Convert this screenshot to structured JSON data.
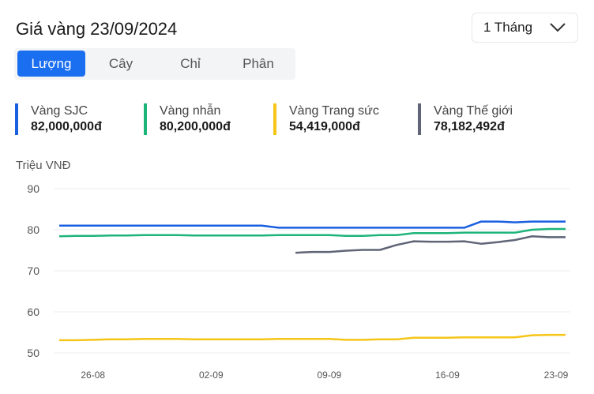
{
  "header": {
    "title": "Giá vàng 23/09/2024",
    "period": "1 Tháng"
  },
  "tabs": [
    {
      "label": "Lượng",
      "active": true
    },
    {
      "label": "Cây"
    },
    {
      "label": "Chỉ"
    },
    {
      "label": "Phân"
    }
  ],
  "legend": [
    {
      "name": "Vàng SJC",
      "value": "82,000,000đ",
      "color": "#1a5fe0"
    },
    {
      "name": "Vàng nhẫn",
      "value": "80,200,000đ",
      "color": "#1db47a"
    },
    {
      "name": "Vàng Trang sức",
      "value": "54,419,000đ",
      "color": "#f5c518"
    },
    {
      "name": "Vàng Thế giới",
      "value": "78,182,492đ",
      "color": "#5f6577"
    }
  ],
  "chart_data": {
    "type": "line",
    "ylabel": "Triệu VNĐ",
    "ylim": [
      50,
      90
    ],
    "yticks": [
      "90",
      "80",
      "70",
      "60",
      "50"
    ],
    "grid": true,
    "x": [
      "24-08",
      "25-08",
      "26-08",
      "27-08",
      "28-08",
      "29-08",
      "30-08",
      "31-08",
      "01-09",
      "02-09",
      "03-09",
      "04-09",
      "05-09",
      "06-09",
      "07-09",
      "08-09",
      "09-09",
      "10-09",
      "11-09",
      "12-09",
      "13-09",
      "14-09",
      "15-09",
      "16-09",
      "17-09",
      "18-09",
      "19-09",
      "20-09",
      "21-09",
      "22-09",
      "23-09"
    ],
    "xticks": [
      "26-08",
      "02-09",
      "09-09",
      "16-09",
      "23-09"
    ],
    "series": [
      {
        "name": "Vàng SJC",
        "color": "#1a5fe0",
        "values": [
          81,
          81,
          81,
          81,
          81,
          81,
          81,
          81,
          81,
          81,
          81,
          81,
          81,
          80.5,
          80.5,
          80.5,
          80.5,
          80.5,
          80.5,
          80.5,
          80.5,
          80.5,
          80.5,
          80.5,
          80.5,
          82,
          82,
          81.8,
          82,
          82,
          82
        ]
      },
      {
        "name": "Vàng nhẫn",
        "color": "#1db47a",
        "values": [
          78.4,
          78.5,
          78.5,
          78.6,
          78.6,
          78.7,
          78.7,
          78.7,
          78.6,
          78.6,
          78.6,
          78.6,
          78.6,
          78.7,
          78.7,
          78.7,
          78.7,
          78.5,
          78.5,
          78.7,
          78.7,
          79.2,
          79.2,
          79.2,
          79.3,
          79.3,
          79.3,
          79.3,
          80.0,
          80.2,
          80.2
        ]
      },
      {
        "name": "Vàng Trang sức",
        "color": "#f5c518",
        "values": [
          53.1,
          53.1,
          53.2,
          53.3,
          53.3,
          53.4,
          53.4,
          53.4,
          53.3,
          53.3,
          53.3,
          53.3,
          53.3,
          53.4,
          53.4,
          53.4,
          53.4,
          53.2,
          53.2,
          53.3,
          53.3,
          53.7,
          53.7,
          53.7,
          53.8,
          53.8,
          53.8,
          53.8,
          54.3,
          54.4,
          54.4
        ]
      },
      {
        "name": "Vàng Thế giới",
        "color": "#5f6577",
        "values": [
          null,
          null,
          null,
          null,
          null,
          null,
          null,
          null,
          null,
          null,
          null,
          null,
          null,
          null,
          74.4,
          74.6,
          74.6,
          74.9,
          75.1,
          75.1,
          76.3,
          77.2,
          77.1,
          77.1,
          77.2,
          76.6,
          77.0,
          77.5,
          78.4,
          78.2,
          78.2
        ]
      }
    ]
  }
}
